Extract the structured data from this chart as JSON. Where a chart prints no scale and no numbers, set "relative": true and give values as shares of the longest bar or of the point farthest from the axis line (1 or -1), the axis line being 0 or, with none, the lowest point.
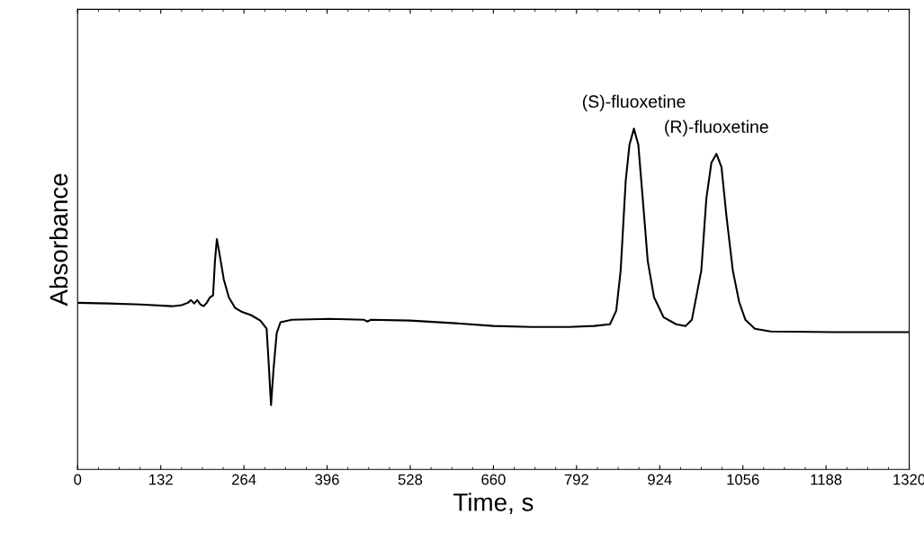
{
  "chart_data": {
    "type": "line",
    "relative": true,
    "xlabel": "Time, s",
    "ylabel": "Absorbance",
    "xlim": [
      0,
      1320
    ],
    "xticks": [
      0,
      132,
      264,
      396,
      528,
      660,
      792,
      924,
      1056,
      1188,
      1320
    ],
    "grid": false,
    "legend": false,
    "marker": "none",
    "line_style": "solid",
    "annotations": [
      {
        "text": "(S)-fluoxetine",
        "x": 883,
        "y": 1
      },
      {
        "text": "(R)-fluoxetine",
        "x": 1014,
        "y": 0.926
      }
    ],
    "series": [
      {
        "color": "#000000",
        "x": [
          0,
          50,
          100,
          150,
          165,
          175,
          180,
          185,
          190,
          195,
          200,
          205,
          210,
          215,
          218,
          221,
          226,
          232,
          240,
          250,
          260,
          275,
          290,
          300,
          303,
          307,
          311,
          316,
          322,
          340,
          400,
          455,
          460,
          465,
          528,
          600,
          660,
          720,
          780,
          820,
          845,
          855,
          862,
          870,
          876,
          883,
          890,
          897,
          905,
          915,
          930,
          950,
          965,
          975,
          990,
          998,
          1006,
          1014,
          1022,
          1030,
          1040,
          1050,
          1060,
          1075,
          1100,
          1200,
          1320
        ],
        "values": [
          0.489,
          0.487,
          0.484,
          0.479,
          0.482,
          0.489,
          0.497,
          0.487,
          0.497,
          0.484,
          0.479,
          0.489,
          0.505,
          0.511,
          0.611,
          0.676,
          0.624,
          0.558,
          0.505,
          0.474,
          0.463,
          0.453,
          0.437,
          0.413,
          0.321,
          0.189,
          0.295,
          0.4,
          0.432,
          0.439,
          0.442,
          0.439,
          0.434,
          0.439,
          0.437,
          0.429,
          0.421,
          0.418,
          0.418,
          0.421,
          0.426,
          0.466,
          0.584,
          0.847,
          0.953,
          1,
          0.953,
          0.795,
          0.611,
          0.505,
          0.447,
          0.426,
          0.421,
          0.439,
          0.584,
          0.795,
          0.9,
          0.926,
          0.887,
          0.742,
          0.584,
          0.492,
          0.439,
          0.413,
          0.405,
          0.403,
          0.403
        ]
      }
    ]
  }
}
